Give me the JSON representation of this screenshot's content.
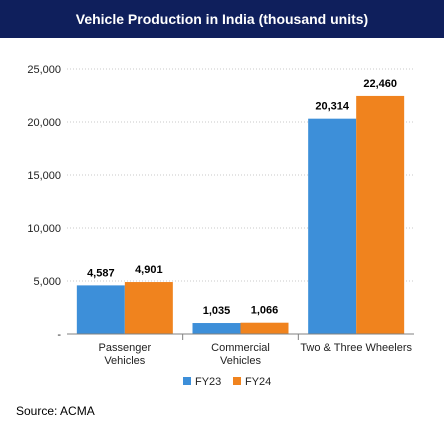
{
  "colors": {
    "title_bg": "#0f1f5c",
    "fy23": "#3d8fd9",
    "fy24": "#f0831e",
    "grid": "#c8c8c8",
    "axis": "#808080"
  },
  "chart_data": {
    "type": "bar",
    "title": "Vehicle Production in India (thousand units)",
    "categories": [
      [
        "Passenger",
        "Vehicles"
      ],
      [
        "Commercial",
        "Vehicles"
      ],
      [
        "Two & Three Wheelers"
      ]
    ],
    "series": [
      {
        "name": "FY23",
        "values": [
          4587,
          1035,
          20314
        ],
        "labels": [
          "4,587",
          "1,035",
          "20,314"
        ]
      },
      {
        "name": "FY24",
        "values": [
          4901,
          1066,
          22460
        ],
        "labels": [
          "4,901",
          "1,066",
          "22,460"
        ]
      }
    ],
    "ylim": [
      0,
      25000
    ],
    "yticks": [
      {
        "value": 0,
        "label": "-"
      },
      {
        "value": 5000,
        "label": "5,000"
      },
      {
        "value": 10000,
        "label": "10,000"
      },
      {
        "value": 15000,
        "label": "15,000"
      },
      {
        "value": 20000,
        "label": "20,000"
      },
      {
        "value": 25000,
        "label": "25,000"
      }
    ],
    "grid": true,
    "legend": "bottom"
  },
  "source": "Source: ACMA"
}
